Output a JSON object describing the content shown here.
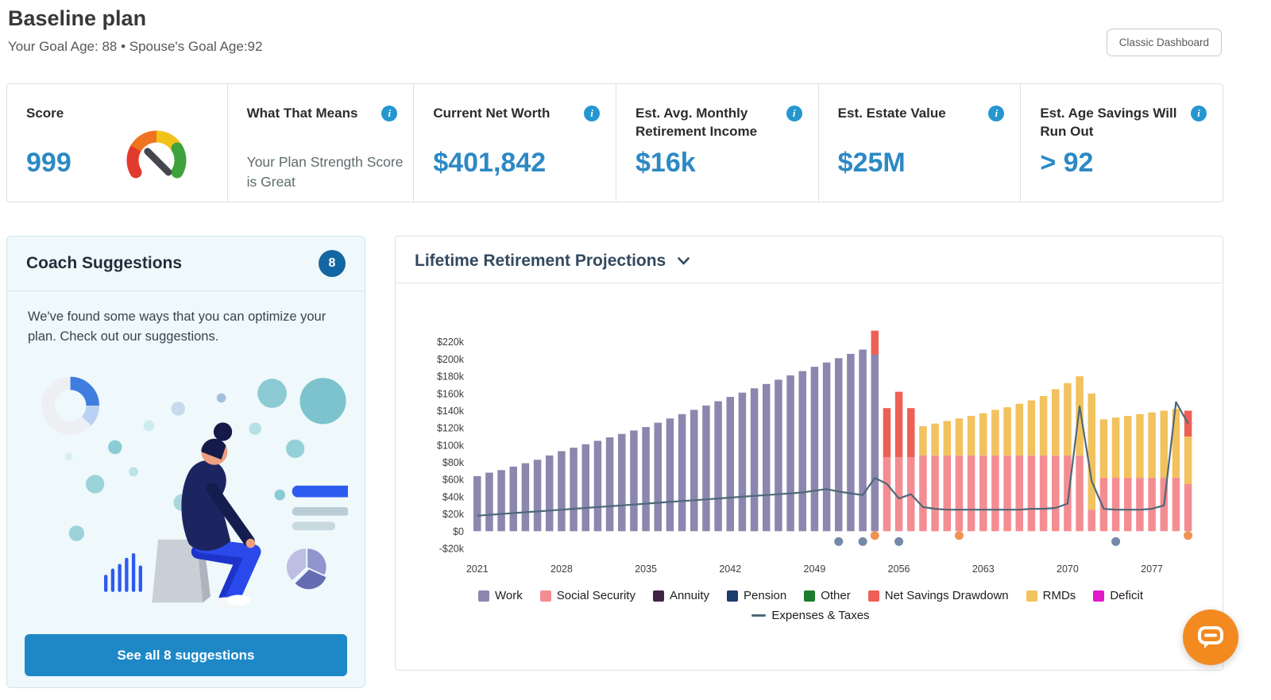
{
  "page": {
    "title": "Baseline plan",
    "subtitle": "Your Goal Age: 88 • Spouse's Goal Age:92",
    "classic_dashboard_label": "Classic Dashboard"
  },
  "stats": {
    "score": {
      "label": "Score",
      "value": "999"
    },
    "meaning": {
      "label": "What That Means",
      "value": "Your Plan Strength Score is Great"
    },
    "net_worth": {
      "label": "Current Net Worth",
      "value": "$401,842"
    },
    "monthly_income": {
      "label": "Est. Avg. Monthly Retirement Income",
      "value": "$16k"
    },
    "estate": {
      "label": "Est. Estate Value",
      "value": "$25M"
    },
    "run_out": {
      "label": "Est. Age Savings Will Run Out",
      "value": "> 92"
    }
  },
  "coach": {
    "title": "Coach Suggestions",
    "badge": "8",
    "description": "We've found some ways that you can optimize your plan. Check out our suggestions.",
    "button_label": "See all 8 suggestions"
  },
  "chart_section": {
    "title": "Lifetime Retirement Projections"
  },
  "chart_data": {
    "type": "bar",
    "stacked": true,
    "title": "Lifetime Retirement Projections",
    "values_unit": "USD thousands per year",
    "x": [
      2021,
      2022,
      2023,
      2024,
      2025,
      2026,
      2027,
      2028,
      2029,
      2030,
      2031,
      2032,
      2033,
      2034,
      2035,
      2036,
      2037,
      2038,
      2039,
      2040,
      2041,
      2042,
      2043,
      2044,
      2045,
      2046,
      2047,
      2048,
      2049,
      2050,
      2051,
      2052,
      2053,
      2054,
      2055,
      2056,
      2057,
      2058,
      2059,
      2060,
      2061,
      2062,
      2063,
      2064,
      2065,
      2066,
      2067,
      2068,
      2069,
      2070,
      2071,
      2072,
      2073,
      2074,
      2075,
      2076,
      2077,
      2078,
      2079,
      2080
    ],
    "x_tick_years": [
      2021,
      2028,
      2035,
      2042,
      2049,
      2056,
      2063,
      2070,
      2077
    ],
    "y_ticks": [
      220,
      200,
      180,
      160,
      140,
      120,
      100,
      80,
      60,
      40,
      20,
      0,
      -20
    ],
    "ylim": [
      -20,
      240
    ],
    "series": [
      {
        "name": "Work",
        "color": "#8b87ae",
        "values": [
          64,
          68,
          71,
          75,
          79,
          83,
          88,
          93,
          97,
          101,
          105,
          109,
          113,
          117,
          121,
          126,
          131,
          136,
          141,
          146,
          151,
          156,
          161,
          166,
          171,
          176,
          181,
          186,
          191,
          196,
          201,
          206,
          211,
          205,
          0,
          0,
          0,
          0,
          0,
          0,
          0,
          0,
          0,
          0,
          0,
          0,
          0,
          0,
          0,
          0,
          0,
          0,
          0,
          0,
          0,
          0,
          0,
          0,
          0,
          0
        ]
      },
      {
        "name": "Social Security",
        "color": "#f48d92",
        "values": [
          0,
          0,
          0,
          0,
          0,
          0,
          0,
          0,
          0,
          0,
          0,
          0,
          0,
          0,
          0,
          0,
          0,
          0,
          0,
          0,
          0,
          0,
          0,
          0,
          0,
          0,
          0,
          0,
          0,
          0,
          0,
          0,
          0,
          0,
          86,
          86,
          86,
          88,
          88,
          88,
          88,
          88,
          88,
          88,
          88,
          88,
          88,
          88,
          88,
          88,
          88,
          25,
          62,
          62,
          62,
          62,
          62,
          62,
          62,
          55
        ]
      },
      {
        "name": "RMDs",
        "color": "#f2c25e",
        "values": [
          0,
          0,
          0,
          0,
          0,
          0,
          0,
          0,
          0,
          0,
          0,
          0,
          0,
          0,
          0,
          0,
          0,
          0,
          0,
          0,
          0,
          0,
          0,
          0,
          0,
          0,
          0,
          0,
          0,
          0,
          0,
          0,
          0,
          0,
          0,
          0,
          0,
          34,
          37,
          40,
          43,
          46,
          49,
          53,
          56,
          60,
          64,
          69,
          77,
          84,
          92,
          135,
          68,
          70,
          72,
          74,
          76,
          78,
          80,
          55
        ]
      },
      {
        "name": "Net Savings Drawdown",
        "color": "#ee6055",
        "values": [
          0,
          0,
          0,
          0,
          0,
          0,
          0,
          0,
          0,
          0,
          0,
          0,
          0,
          0,
          0,
          0,
          0,
          0,
          0,
          0,
          0,
          0,
          0,
          0,
          0,
          0,
          0,
          0,
          0,
          0,
          0,
          0,
          0,
          28,
          57,
          76,
          57,
          0,
          0,
          0,
          0,
          0,
          0,
          0,
          0,
          0,
          0,
          0,
          0,
          0,
          0,
          0,
          0,
          0,
          0,
          0,
          0,
          0,
          0,
          30
        ]
      }
    ],
    "line_series": {
      "name": "Expenses & Taxes",
      "color": "#4f6878",
      "values": [
        18,
        19,
        20,
        21,
        22,
        23,
        24,
        25,
        26,
        27,
        28,
        29,
        30,
        31,
        32,
        33,
        34,
        35,
        36,
        37,
        38,
        39,
        40,
        41,
        42,
        43,
        44,
        45,
        47,
        49,
        46,
        44,
        42,
        62,
        55,
        38,
        43,
        28,
        26,
        25,
        25,
        25,
        25,
        25,
        25,
        25,
        26,
        26,
        27,
        32,
        145,
        58,
        26,
        25,
        25,
        25,
        26,
        30,
        150,
        125
      ]
    },
    "legend": [
      {
        "label": "Work",
        "color": "#8b87ae",
        "type": "box"
      },
      {
        "label": "Social Security",
        "color": "#f48d92",
        "type": "box"
      },
      {
        "label": "Annuity",
        "color": "#3f2543",
        "type": "box"
      },
      {
        "label": "Pension",
        "color": "#1d3c6e",
        "type": "box"
      },
      {
        "label": "Other",
        "color": "#1b7e2c",
        "type": "box"
      },
      {
        "label": "Net Savings Drawdown",
        "color": "#ee6055",
        "type": "box"
      },
      {
        "label": "RMDs",
        "color": "#f2c25e",
        "type": "box"
      },
      {
        "label": "Deficit",
        "color": "#e31ac8",
        "type": "box"
      },
      {
        "label": "Expenses & Taxes",
        "color": "#4f6878",
        "type": "line"
      }
    ],
    "markers": [
      {
        "name": "event-marker-gray",
        "color": "#7589a9",
        "value": -12,
        "years": [
          2051,
          2053,
          2056,
          2074
        ]
      },
      {
        "name": "event-marker-orange",
        "color": "#ef9355",
        "value": -5,
        "years": [
          2054,
          2061,
          2080
        ]
      }
    ]
  }
}
